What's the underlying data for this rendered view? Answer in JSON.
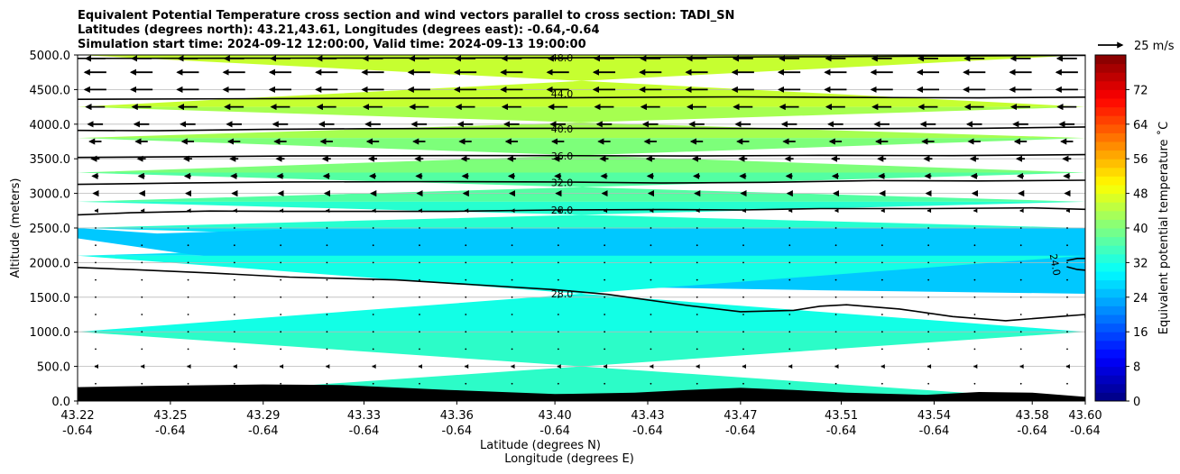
{
  "chart_data": {
    "type": "contour-cross-section",
    "title_lines": [
      "Equivalent Potential Temperature cross section and wind vectors parallel to cross section: TADI_SN",
      "Latitudes (degrees north): 43.21,43.61, Longitudes (degrees east): -0.64,-0.64",
      "Simulation start time: 2024-09-12 12:00:00, Valid time: 2024-09-13 19:00:00"
    ],
    "xlabel_line1": "Latitude (degrees N)",
    "xlabel_line2": "Longitude (degrees E)",
    "ylabel": "Altitude (meters)",
    "xlim": [
      43.22,
      43.6
    ],
    "ylim": [
      0,
      5000
    ],
    "x_ticks": [
      {
        "value": 43.22,
        "lat": "43.22",
        "lon": "-0.64"
      },
      {
        "value": 43.255,
        "lat": "43.25",
        "lon": "-0.64"
      },
      {
        "value": 43.29,
        "lat": "43.29",
        "lon": "-0.64"
      },
      {
        "value": 43.328,
        "lat": "43.33",
        "lon": "-0.64"
      },
      {
        "value": 43.363,
        "lat": "43.36",
        "lon": "-0.64"
      },
      {
        "value": 43.4,
        "lat": "43.40",
        "lon": "-0.64"
      },
      {
        "value": 43.435,
        "lat": "43.43",
        "lon": "-0.64"
      },
      {
        "value": 43.47,
        "lat": "43.47",
        "lon": "-0.64"
      },
      {
        "value": 43.508,
        "lat": "43.51",
        "lon": "-0.64"
      },
      {
        "value": 43.543,
        "lat": "43.54",
        "lon": "-0.64"
      },
      {
        "value": 43.58,
        "lat": "43.58",
        "lon": "-0.64"
      },
      {
        "value": 43.6,
        "lat": "43.60",
        "lon": "-0.64"
      }
    ],
    "y_ticks": [
      {
        "value": 0,
        "label": "0.0"
      },
      {
        "value": 500,
        "label": "500.0"
      },
      {
        "value": 1000,
        "label": "1000.0"
      },
      {
        "value": 1500,
        "label": "1500.0"
      },
      {
        "value": 2000,
        "label": "2000.0"
      },
      {
        "value": 2500,
        "label": "2500.0"
      },
      {
        "value": 3000,
        "label": "3000.0"
      },
      {
        "value": 3500,
        "label": "3500.0"
      },
      {
        "value": 4000,
        "label": "4000.0"
      },
      {
        "value": 4500,
        "label": "4500.0"
      },
      {
        "value": 5000,
        "label": "5000.0"
      }
    ],
    "grid_y": true,
    "colorbar": {
      "label": "Equivalent potential temperature $^\\circ$C",
      "label_display": "Equivalent potential temperature ˚C",
      "min": 0,
      "max": 80,
      "step": 2,
      "ticks": [
        {
          "value": 0,
          "label": "0"
        },
        {
          "value": 8,
          "label": "8"
        },
        {
          "value": 16,
          "label": "16"
        },
        {
          "value": 24,
          "label": "24"
        },
        {
          "value": 32,
          "label": "32"
        },
        {
          "value": 40,
          "label": "40"
        },
        {
          "value": 48,
          "label": "48"
        },
        {
          "value": 56,
          "label": "56"
        },
        {
          "value": 64,
          "label": "64"
        },
        {
          "value": 72,
          "label": "72"
        }
      ],
      "colormap": "jet"
    },
    "filled_bands": [
      {
        "level": 44,
        "top": [
          [
            43.22,
            5000
          ],
          [
            43.6,
            5000
          ]
        ],
        "bottom": [
          [
            43.22,
            4250
          ],
          [
            43.6,
            4250
          ]
        ],
        "color": "#c6ff30"
      },
      {
        "level": 42,
        "top": [
          [
            43.22,
            4250
          ],
          [
            43.6,
            4250
          ]
        ],
        "bottom": [
          [
            43.22,
            3800
          ],
          [
            43.6,
            3800
          ]
        ],
        "color": "#a6ff50"
      },
      {
        "level": 38,
        "top": [
          [
            43.22,
            3800
          ],
          [
            43.6,
            3800
          ]
        ],
        "bottom": [
          [
            43.22,
            3300
          ],
          [
            43.6,
            3300
          ]
        ],
        "color": "#7dff7a"
      },
      {
        "level": 34,
        "top": [
          [
            43.22,
            3300
          ],
          [
            43.6,
            3300
          ]
        ],
        "bottom": [
          [
            43.22,
            2880
          ],
          [
            43.6,
            2880
          ]
        ],
        "color": "#53ffa3"
      },
      {
        "level": 30,
        "top": [
          [
            43.22,
            2880
          ],
          [
            43.6,
            2880
          ]
        ],
        "bottom": [
          [
            43.22,
            2500
          ],
          [
            43.6,
            2500
          ]
        ],
        "color": "#26ffd0"
      },
      {
        "level": 28,
        "top": [
          [
            43.22,
            2500
          ],
          [
            43.6,
            2500
          ]
        ],
        "bottom": [
          [
            43.22,
            2100
          ],
          [
            43.6,
            2100
          ]
        ],
        "color": "#00e4f8"
      },
      {
        "level": 26,
        "top": [
          [
            43.22,
            2500
          ],
          [
            43.25,
            2420
          ],
          [
            43.3,
            2480
          ],
          [
            43.6,
            2500
          ]
        ],
        "bottom": [
          [
            43.6,
            1550
          ],
          [
            43.5,
            1600
          ],
          [
            43.42,
            1650
          ],
          [
            43.35,
            1800
          ],
          [
            43.3,
            1950
          ],
          [
            43.26,
            2130
          ],
          [
            43.22,
            2350
          ]
        ],
        "color": "#00c8ff"
      },
      {
        "level": 30,
        "top": [
          [
            43.22,
            2100
          ],
          [
            43.6,
            2100
          ]
        ],
        "bottom": [
          [
            43.22,
            1000
          ],
          [
            43.6,
            1000
          ]
        ],
        "color": "#12ffe6"
      },
      {
        "level": 32,
        "top": [
          [
            43.22,
            1000
          ],
          [
            43.6,
            1000
          ]
        ],
        "bottom": [
          [
            43.22,
            0
          ],
          [
            43.6,
            0
          ]
        ],
        "color": "#2cfcc8"
      }
    ],
    "contours": [
      {
        "level": 48,
        "label": "48.0",
        "label_x": 43.402,
        "label_y": 4960,
        "points": [
          [
            43.22,
            4950
          ],
          [
            43.3,
            4955
          ],
          [
            43.4,
            4960
          ],
          [
            43.5,
            4975
          ],
          [
            43.6,
            4995
          ]
        ]
      },
      {
        "level": 44,
        "label": "44.0",
        "label_x": 43.402,
        "label_y": 4440,
        "points": [
          [
            43.22,
            4360
          ],
          [
            43.3,
            4370
          ],
          [
            43.4,
            4380
          ],
          [
            43.44,
            4390
          ],
          [
            43.47,
            4395
          ],
          [
            43.52,
            4385
          ],
          [
            43.56,
            4380
          ],
          [
            43.6,
            4390
          ]
        ]
      },
      {
        "level": 40,
        "label": "40.0",
        "label_x": 43.402,
        "label_y": 3930,
        "points": [
          [
            43.22,
            3910
          ],
          [
            43.25,
            3905
          ],
          [
            43.29,
            3925
          ],
          [
            43.33,
            3935
          ],
          [
            43.4,
            3940
          ],
          [
            43.45,
            3940
          ],
          [
            43.5,
            3935
          ],
          [
            43.56,
            3940
          ],
          [
            43.6,
            3960
          ]
        ]
      },
      {
        "level": 36,
        "label": "36.0",
        "label_x": 43.402,
        "label_y": 3540,
        "points": [
          [
            43.22,
            3520
          ],
          [
            43.26,
            3530
          ],
          [
            43.3,
            3540
          ],
          [
            43.36,
            3545
          ],
          [
            43.4,
            3545
          ],
          [
            43.45,
            3540
          ],
          [
            43.5,
            3550
          ],
          [
            43.55,
            3545
          ],
          [
            43.6,
            3560
          ]
        ]
      },
      {
        "level": 32,
        "label": "32.0",
        "label_x": 43.402,
        "label_y": 3160,
        "points": [
          [
            43.22,
            3130
          ],
          [
            43.26,
            3150
          ],
          [
            43.3,
            3165
          ],
          [
            43.36,
            3170
          ],
          [
            43.4,
            3165
          ],
          [
            43.44,
            3150
          ],
          [
            43.48,
            3160
          ],
          [
            43.52,
            3185
          ],
          [
            43.56,
            3180
          ],
          [
            43.6,
            3190
          ]
        ]
      },
      {
        "level": 28,
        "label": "28.0",
        "label_x": 43.402,
        "label_y": 2760,
        "points": [
          [
            43.22,
            2690
          ],
          [
            43.24,
            2720
          ],
          [
            43.27,
            2745
          ],
          [
            43.3,
            2740
          ],
          [
            43.36,
            2740
          ],
          [
            43.4,
            2760
          ],
          [
            43.44,
            2765
          ],
          [
            43.47,
            2760
          ],
          [
            43.5,
            2780
          ],
          [
            43.54,
            2780
          ],
          [
            43.58,
            2790
          ],
          [
            43.6,
            2770
          ]
        ]
      },
      {
        "level": 28,
        "label": "28.0",
        "label_x": 43.402,
        "label_y": 1550,
        "points": [
          [
            43.22,
            1930
          ],
          [
            43.24,
            1900
          ],
          [
            43.27,
            1850
          ],
          [
            43.3,
            1790
          ],
          [
            43.34,
            1750
          ],
          [
            43.37,
            1680
          ],
          [
            43.4,
            1610
          ],
          [
            43.42,
            1540
          ],
          [
            43.45,
            1380
          ],
          [
            43.47,
            1290
          ],
          [
            43.49,
            1310
          ],
          [
            43.5,
            1370
          ],
          [
            43.51,
            1390
          ],
          [
            43.53,
            1330
          ],
          [
            43.55,
            1220
          ],
          [
            43.57,
            1160
          ],
          [
            43.59,
            1220
          ],
          [
            43.6,
            1250
          ],
          [
            43.6,
            1200
          ]
        ]
      },
      {
        "level": 24,
        "label": "24.0",
        "label_x": 43.588,
        "label_y": 1970,
        "points": [
          [
            43.593,
            2030
          ],
          [
            43.597,
            2060
          ],
          [
            43.6,
            2060
          ]
        ],
        "points2": [
          [
            43.593,
            1940
          ],
          [
            43.597,
            1900
          ],
          [
            43.6,
            1890
          ]
        ]
      }
    ],
    "terrain": [
      [
        43.22,
        200
      ],
      [
        43.25,
        220
      ],
      [
        43.29,
        240
      ],
      [
        43.32,
        230
      ],
      [
        43.36,
        160
      ],
      [
        43.4,
        100
      ],
      [
        43.43,
        120
      ],
      [
        43.45,
        160
      ],
      [
        43.47,
        190
      ],
      [
        43.49,
        160
      ],
      [
        43.51,
        120
      ],
      [
        43.54,
        90
      ],
      [
        43.56,
        130
      ],
      [
        43.58,
        120
      ],
      [
        43.6,
        60
      ]
    ],
    "wind": {
      "reference_label": "25 m/s",
      "reference_speed": 25,
      "levels": [
        {
          "altitude": 4950,
          "u": -20
        },
        {
          "altitude": 4750,
          "u": -22
        },
        {
          "altitude": 4500,
          "u": -22
        },
        {
          "altitude": 4250,
          "u": -19
        },
        {
          "altitude": 4000,
          "u": -15
        },
        {
          "altitude": 3750,
          "u": -12
        },
        {
          "altitude": 3500,
          "u": -8
        },
        {
          "altitude": 3250,
          "u": -6
        },
        {
          "altitude": 3000,
          "u": -4
        },
        {
          "altitude": 2750,
          "u": -2
        },
        {
          "altitude": 2500,
          "u": -0.8
        },
        {
          "altitude": 2250,
          "u": -0.3
        },
        {
          "altitude": 2000,
          "u": -0.2
        },
        {
          "altitude": 1750,
          "u": -0.2
        },
        {
          "altitude": 1500,
          "u": -0.3
        },
        {
          "altitude": 1250,
          "u": -0.5
        },
        {
          "altitude": 1000,
          "u": -0.6
        },
        {
          "altitude": 750,
          "u": -1.0
        },
        {
          "altitude": 500,
          "u": -2.0
        },
        {
          "altitude": 250,
          "u": -1.5
        }
      ],
      "columns": 22
    }
  }
}
